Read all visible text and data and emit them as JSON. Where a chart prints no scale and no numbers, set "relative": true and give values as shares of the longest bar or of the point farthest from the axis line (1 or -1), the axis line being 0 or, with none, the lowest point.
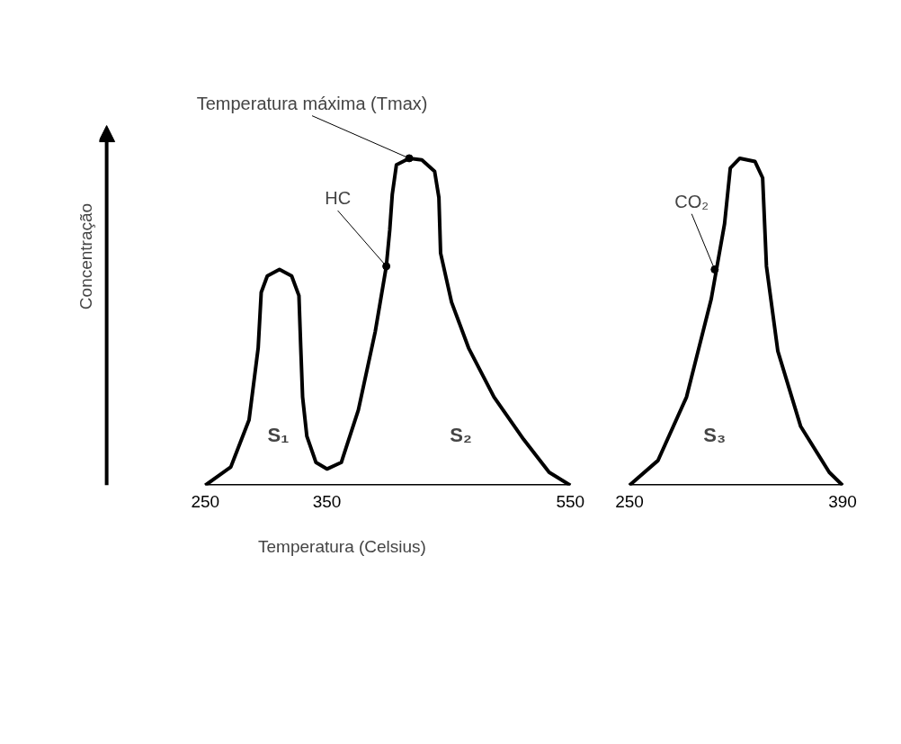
{
  "chart_data": [
    {
      "type": "line",
      "relative": true,
      "ylabel": "Concentração",
      "xlabel": "Temperatura (Celsius)",
      "xlim": [
        250,
        550
      ],
      "xticks": [
        250,
        350,
        550
      ],
      "grid": false,
      "marker": "none",
      "line_style": "solid",
      "series": [
        {
          "color": "#000000",
          "x": [
            250,
            271,
            286,
            293.5,
            296,
            301,
            311,
            321,
            327,
            328.5,
            330,
            333.5,
            341,
            350,
            361.8,
            375.8,
            389.7,
            398.8,
            401.6,
            403.7,
            407.1,
            417.6,
            428,
            438.5,
            442,
            443.4,
            452.4,
            466.4,
            487.3,
            511.7,
            532.6,
            550
          ],
          "values": [
            0,
            0.056,
            0.2,
            0.42,
            0.59,
            0.64,
            0.66,
            0.64,
            0.58,
            0.42,
            0.27,
            0.15,
            0.07,
            0.05,
            0.07,
            0.23,
            0.47,
            0.67,
            0.78,
            0.89,
            0.98,
            1,
            0.995,
            0.96,
            0.88,
            0.71,
            0.56,
            0.42,
            0.27,
            0.14,
            0.04,
            0
          ]
        }
      ],
      "annotations": [
        {
          "text": "Temperatura máxima (Tmax)",
          "x": 417.6,
          "y": 1
        },
        {
          "text": "HC",
          "x": 398.8,
          "y": 0.67
        },
        "S₁",
        "S₂"
      ]
    },
    {
      "type": "line",
      "relative": true,
      "xlim": [
        250,
        390
      ],
      "xticks": [
        250,
        390
      ],
      "grid": false,
      "marker": "none",
      "line_style": "solid",
      "series": [
        {
          "color": "#000000",
          "x": [
            250,
            268.75,
            287.5,
            303.75,
            312.5,
            316.25,
            322.5,
            332.5,
            337.5,
            340,
            347.5,
            362.5,
            381.25,
            390
          ],
          "values": [
            0,
            0.076,
            0.27,
            0.57,
            0.8,
            0.97,
            1,
            0.99,
            0.94,
            0.67,
            0.41,
            0.18,
            0.04,
            0
          ]
        }
      ],
      "annotations": [
        {
          "text": "CO₂",
          "x": 306,
          "y": 0.66
        },
        "S₃"
      ]
    }
  ]
}
